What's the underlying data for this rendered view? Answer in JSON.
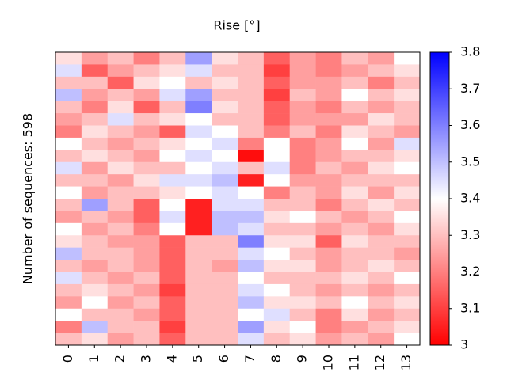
{
  "chart_data": {
    "type": "heatmap",
    "title": "Rise [°]",
    "y_label": "Number of sequences: 598",
    "categories": [
      "0",
      "1",
      "2",
      "3",
      "4",
      "5",
      "6",
      "7",
      "8",
      "9",
      "10",
      "11",
      "12",
      "13"
    ],
    "z": [
      [
        3.35,
        3.25,
        3.3,
        3.2,
        3.3,
        3.55,
        3.35,
        3.3,
        3.15,
        3.25,
        3.2,
        3.3,
        3.25,
        3.4
      ],
      [
        3.45,
        3.15,
        3.25,
        3.3,
        3.35,
        3.45,
        3.3,
        3.3,
        3.1,
        3.25,
        3.2,
        3.25,
        3.3,
        3.35
      ],
      [
        3.3,
        3.3,
        3.15,
        3.35,
        3.4,
        3.3,
        3.35,
        3.3,
        3.15,
        3.25,
        3.25,
        3.3,
        3.2,
        3.3
      ],
      [
        3.5,
        3.25,
        3.3,
        3.25,
        3.45,
        3.55,
        3.3,
        3.3,
        3.1,
        3.3,
        3.25,
        3.4,
        3.3,
        3.35
      ],
      [
        3.3,
        3.2,
        3.35,
        3.15,
        3.3,
        3.6,
        3.35,
        3.3,
        3.15,
        3.25,
        3.2,
        3.3,
        3.25,
        3.3
      ],
      [
        3.25,
        3.3,
        3.45,
        3.3,
        3.35,
        3.4,
        3.3,
        3.3,
        3.15,
        3.25,
        3.25,
        3.25,
        3.35,
        3.3
      ],
      [
        3.2,
        3.35,
        3.3,
        3.25,
        3.15,
        3.45,
        3.4,
        3.3,
        3.2,
        3.3,
        3.2,
        3.35,
        3.3,
        3.25
      ],
      [
        3.4,
        3.3,
        3.25,
        3.3,
        3.35,
        3.4,
        3.45,
        3.2,
        3.4,
        3.2,
        3.25,
        3.4,
        3.25,
        3.45
      ],
      [
        3.3,
        3.35,
        3.3,
        3.25,
        3.4,
        3.45,
        3.4,
        3.02,
        3.4,
        3.2,
        3.25,
        3.3,
        3.3,
        3.35
      ],
      [
        3.45,
        3.25,
        3.35,
        3.3,
        3.3,
        3.4,
        3.45,
        3.3,
        3.45,
        3.2,
        3.3,
        3.25,
        3.35,
        3.4
      ],
      [
        3.3,
        3.3,
        3.25,
        3.35,
        3.45,
        3.45,
        3.5,
        3.05,
        3.4,
        3.25,
        3.25,
        3.3,
        3.3,
        3.3
      ],
      [
        3.4,
        3.25,
        3.3,
        3.3,
        3.35,
        3.4,
        3.45,
        3.4,
        3.2,
        3.3,
        3.25,
        3.35,
        3.25,
        3.35
      ],
      [
        3.3,
        3.55,
        3.3,
        3.15,
        3.4,
        3.05,
        3.45,
        3.45,
        3.3,
        3.3,
        3.2,
        3.3,
        3.35,
        3.3
      ],
      [
        3.25,
        3.3,
        3.25,
        3.15,
        3.45,
        3.05,
        3.5,
        3.5,
        3.35,
        3.4,
        3.3,
        3.25,
        3.3,
        3.4
      ],
      [
        3.4,
        3.25,
        3.3,
        3.2,
        3.4,
        3.05,
        3.5,
        3.45,
        3.3,
        3.3,
        3.25,
        3.3,
        3.25,
        3.35
      ],
      [
        3.35,
        3.3,
        3.25,
        3.25,
        3.15,
        3.3,
        3.3,
        3.6,
        3.35,
        3.35,
        3.15,
        3.35,
        3.3,
        3.3
      ],
      [
        3.5,
        3.3,
        3.3,
        3.25,
        3.15,
        3.3,
        3.3,
        3.45,
        3.4,
        3.3,
        3.25,
        3.3,
        3.3,
        3.25
      ],
      [
        3.3,
        3.25,
        3.3,
        3.25,
        3.15,
        3.3,
        3.25,
        3.5,
        3.35,
        3.35,
        3.25,
        3.3,
        3.35,
        3.3
      ],
      [
        3.45,
        3.3,
        3.25,
        3.3,
        3.15,
        3.3,
        3.3,
        3.4,
        3.3,
        3.3,
        3.3,
        3.35,
        3.3,
        3.4
      ],
      [
        3.3,
        3.35,
        3.3,
        3.25,
        3.1,
        3.3,
        3.3,
        3.45,
        3.4,
        3.3,
        3.25,
        3.3,
        3.25,
        3.3
      ],
      [
        3.25,
        3.4,
        3.25,
        3.3,
        3.15,
        3.3,
        3.3,
        3.5,
        3.35,
        3.35,
        3.3,
        3.4,
        3.3,
        3.35
      ],
      [
        3.4,
        3.3,
        3.3,
        3.25,
        3.15,
        3.3,
        3.3,
        3.4,
        3.45,
        3.3,
        3.2,
        3.35,
        3.25,
        3.3
      ],
      [
        3.2,
        3.5,
        3.3,
        3.3,
        3.1,
        3.3,
        3.3,
        3.55,
        3.35,
        3.4,
        3.2,
        3.25,
        3.3,
        3.35
      ],
      [
        3.3,
        3.35,
        3.25,
        3.3,
        3.15,
        3.3,
        3.3,
        3.45,
        3.3,
        3.35,
        3.25,
        3.3,
        3.25,
        3.4
      ]
    ],
    "colormap": [
      "#ff0000",
      "#ffffff",
      "#0000ff"
    ],
    "clim": [
      3,
      3.8
    ],
    "cticks": [
      3,
      3.1,
      3.2,
      3.3,
      3.4,
      3.5,
      3.6,
      3.7,
      3.8
    ]
  }
}
